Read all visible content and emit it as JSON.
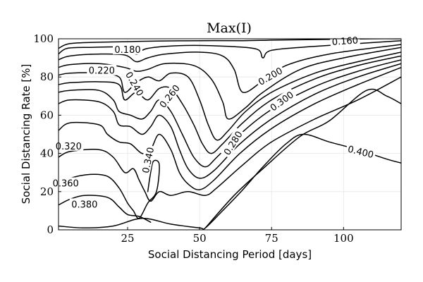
{
  "chart_data": {
    "type": "contour",
    "title": "Max(I)",
    "xlabel": "Social Distancing Period [days]",
    "ylabel": "Social Distancing Rate [%]",
    "xlim": [
      1,
      120
    ],
    "ylim": [
      0,
      100
    ],
    "xticks": [
      25,
      50,
      75,
      100
    ],
    "yticks": [
      0,
      20,
      40,
      60,
      80,
      100
    ],
    "grid": true,
    "levels": [
      0.16,
      0.18,
      0.2,
      0.22,
      0.24,
      0.26,
      0.28,
      0.3,
      0.32,
      0.34,
      0.36,
      0.38,
      0.4
    ],
    "level_labels": [
      {
        "text": "0.160",
        "x": 100.5,
        "y": 99.0,
        "angle": -4
      },
      {
        "text": "0.180",
        "x": 25,
        "y": 94.5,
        "angle": 0
      },
      {
        "text": "0.200",
        "x": 74.5,
        "y": 80.5,
        "angle": -30
      },
      {
        "text": "0.220",
        "x": 16,
        "y": 83.5,
        "angle": 0
      },
      {
        "text": "0.240",
        "x": 27.5,
        "y": 76.5,
        "angle": 60
      },
      {
        "text": "0.260",
        "x": 39.5,
        "y": 70.0,
        "angle": -52
      },
      {
        "text": "0.280",
        "x": 61.5,
        "y": 45.5,
        "angle": -58
      },
      {
        "text": "0.300",
        "x": 78.5,
        "y": 67.5,
        "angle": -36
      },
      {
        "text": "0.320",
        "x": 4.5,
        "y": 44.0,
        "angle": 0
      },
      {
        "text": "0.340",
        "x": 32,
        "y": 36.5,
        "angle": -78
      },
      {
        "text": "0.360",
        "x": 3.5,
        "y": 24.5,
        "angle": 0
      },
      {
        "text": "0.380",
        "x": 10,
        "y": 13.5,
        "angle": 0
      },
      {
        "text": "0.400",
        "x": 106,
        "y": 41.0,
        "angle": 14
      }
    ],
    "contours": [
      {
        "level": 0.16,
        "points": [
          [
            1,
            95
          ],
          [
            5,
            97.5
          ],
          [
            15,
            98.2
          ],
          [
            25,
            98.5
          ],
          [
            35,
            98.8
          ],
          [
            50,
            99
          ],
          [
            65,
            99
          ],
          [
            75,
            99.3
          ],
          [
            90,
            99.6
          ],
          [
            110,
            100
          ],
          [
            120,
            100
          ]
        ]
      },
      {
        "level": 0.18,
        "points": [
          [
            1,
            92
          ],
          [
            4,
            95
          ],
          [
            12,
            95.5
          ],
          [
            24,
            95.5
          ],
          [
            28,
            92
          ],
          [
            32,
            95
          ],
          [
            45,
            96.5
          ],
          [
            60,
            96
          ],
          [
            70,
            94.5
          ],
          [
            72,
            90
          ],
          [
            75,
            94
          ],
          [
            90,
            96
          ],
          [
            110,
            98
          ],
          [
            120,
            99
          ]
        ]
      },
      {
        "level": 0.2,
        "points": [
          [
            1,
            89
          ],
          [
            5,
            91
          ],
          [
            15,
            92
          ],
          [
            24,
            91.5
          ],
          [
            28,
            88
          ],
          [
            32,
            90
          ],
          [
            38,
            92
          ],
          [
            50,
            93
          ],
          [
            58,
            91
          ],
          [
            62,
            84
          ],
          [
            65,
            72
          ],
          [
            72,
            78
          ],
          [
            80,
            86
          ],
          [
            95,
            92
          ],
          [
            120,
            97
          ]
        ]
      },
      {
        "level": 0.22,
        "points": [
          [
            1,
            85
          ],
          [
            5,
            86.5
          ],
          [
            15,
            87
          ],
          [
            24,
            85
          ],
          [
            28,
            83
          ],
          [
            32,
            84
          ],
          [
            38,
            87
          ],
          [
            48,
            86
          ],
          [
            54,
            79
          ],
          [
            58,
            67
          ],
          [
            60,
            58
          ],
          [
            66,
            64
          ],
          [
            72,
            72
          ],
          [
            85,
            84
          ],
          [
            100,
            90
          ],
          [
            120,
            95.5
          ]
        ]
      },
      {
        "level": 0.24,
        "points": [
          [
            1,
            81
          ],
          [
            5,
            82
          ],
          [
            15,
            82
          ],
          [
            22,
            80
          ],
          [
            24,
            72
          ],
          [
            28,
            77
          ],
          [
            32,
            80
          ],
          [
            36,
            78
          ],
          [
            40,
            82
          ],
          [
            46,
            80
          ],
          [
            50,
            68
          ],
          [
            53,
            55
          ],
          [
            56,
            47
          ],
          [
            60,
            52
          ],
          [
            66,
            62
          ],
          [
            75,
            72
          ],
          [
            90,
            82
          ],
          [
            105,
            88
          ],
          [
            120,
            93
          ]
        ]
      },
      {
        "level": 0.26,
        "points": [
          [
            1,
            76
          ],
          [
            5,
            77
          ],
          [
            15,
            77.5
          ],
          [
            22,
            76
          ],
          [
            24,
            68
          ],
          [
            28,
            72
          ],
          [
            32,
            68
          ],
          [
            36,
            74
          ],
          [
            40,
            74
          ],
          [
            44,
            66
          ],
          [
            48,
            55
          ],
          [
            51,
            45
          ],
          [
            54,
            40
          ],
          [
            58,
            45
          ],
          [
            65,
            56
          ],
          [
            75,
            68
          ],
          [
            90,
            79
          ],
          [
            105,
            86
          ],
          [
            120,
            91
          ]
        ]
      },
      {
        "level": 0.28,
        "points": [
          [
            1,
            72
          ],
          [
            5,
            73
          ],
          [
            15,
            73
          ],
          [
            20,
            68
          ],
          [
            22,
            62
          ],
          [
            26,
            60
          ],
          [
            30,
            58
          ],
          [
            33,
            62
          ],
          [
            36,
            68
          ],
          [
            40,
            62
          ],
          [
            44,
            50
          ],
          [
            48,
            38
          ],
          [
            52,
            33
          ],
          [
            56,
            38
          ],
          [
            64,
            50
          ],
          [
            75,
            63
          ],
          [
            90,
            75
          ],
          [
            105,
            83
          ],
          [
            120,
            89
          ]
        ]
      },
      {
        "level": 0.3,
        "points": [
          [
            1,
            66
          ],
          [
            5,
            68
          ],
          [
            15,
            67
          ],
          [
            20,
            62
          ],
          [
            22,
            55
          ],
          [
            26,
            54
          ],
          [
            30,
            50
          ],
          [
            33,
            54
          ],
          [
            36,
            60
          ],
          [
            40,
            54
          ],
          [
            43,
            42
          ],
          [
            46,
            32
          ],
          [
            50,
            27
          ],
          [
            55,
            31
          ],
          [
            64,
            45
          ],
          [
            75,
            58
          ],
          [
            90,
            71
          ],
          [
            105,
            80
          ],
          [
            120,
            87
          ]
        ]
      },
      {
        "level": 0.32,
        "points": [
          [
            1,
            52
          ],
          [
            5,
            56
          ],
          [
            15,
            55
          ],
          [
            18,
            50
          ],
          [
            22,
            46
          ],
          [
            26,
            45
          ],
          [
            30,
            40
          ],
          [
            33,
            42
          ],
          [
            36,
            50
          ],
          [
            40,
            42
          ],
          [
            43,
            30
          ],
          [
            46,
            24
          ],
          [
            50,
            21
          ],
          [
            55,
            26
          ],
          [
            64,
            40
          ],
          [
            75,
            53
          ],
          [
            90,
            66
          ],
          [
            105,
            76
          ],
          [
            120,
            85
          ]
        ]
      },
      {
        "level": 0.34,
        "points": [
          [
            1,
            38
          ],
          [
            5,
            41
          ],
          [
            15,
            42
          ],
          [
            20,
            38
          ],
          [
            24,
            30
          ],
          [
            27,
            32
          ],
          [
            29,
            26
          ],
          [
            31,
            20
          ],
          [
            33,
            15
          ],
          [
            36,
            20
          ],
          [
            40,
            18
          ],
          [
            46,
            20
          ],
          [
            52,
            18
          ],
          [
            56,
            22
          ],
          [
            65,
            34
          ],
          [
            75,
            46
          ],
          [
            90,
            58
          ],
          [
            105,
            68
          ],
          [
            120,
            80
          ]
        ]
      },
      {
        "level": 0.36,
        "points": [
          [
            1,
            24
          ],
          [
            5,
            27
          ],
          [
            12,
            29
          ],
          [
            18,
            28
          ],
          [
            22,
            22
          ],
          [
            25,
            14
          ],
          [
            27,
            10
          ],
          [
            29,
            6
          ],
          [
            32,
            14
          ],
          [
            35,
            20
          ],
          [
            36,
            34
          ],
          [
            34,
            36
          ],
          [
            33,
            30
          ],
          [
            32,
            20
          ]
        ]
      },
      {
        "level": 0.38,
        "points": [
          [
            1,
            13
          ],
          [
            5,
            16
          ],
          [
            10,
            18
          ],
          [
            18,
            17
          ],
          [
            22,
            12
          ],
          [
            25,
            8
          ],
          [
            29,
            7
          ],
          [
            33,
            4
          ]
        ]
      },
      {
        "level": 0.4,
        "points": [
          [
            1,
            2
          ],
          [
            10,
            1
          ],
          [
            20,
            2
          ],
          [
            30,
            6
          ],
          [
            40,
            3
          ],
          [
            50,
            1
          ],
          [
            52,
            1
          ],
          [
            58,
            10
          ],
          [
            65,
            21
          ],
          [
            72,
            33
          ],
          [
            80,
            45
          ],
          [
            86,
            50
          ],
          [
            95,
            46
          ],
          [
            105,
            42
          ],
          [
            115,
            37
          ],
          [
            120,
            35
          ]
        ]
      },
      {
        "level": 0.4,
        "points": [
          [
            52,
            1
          ],
          [
            62,
            18
          ],
          [
            72,
            32
          ],
          [
            85,
            49
          ],
          [
            95,
            57
          ],
          [
            108,
            73
          ],
          [
            115,
            70
          ],
          [
            120,
            66
          ]
        ]
      }
    ]
  }
}
